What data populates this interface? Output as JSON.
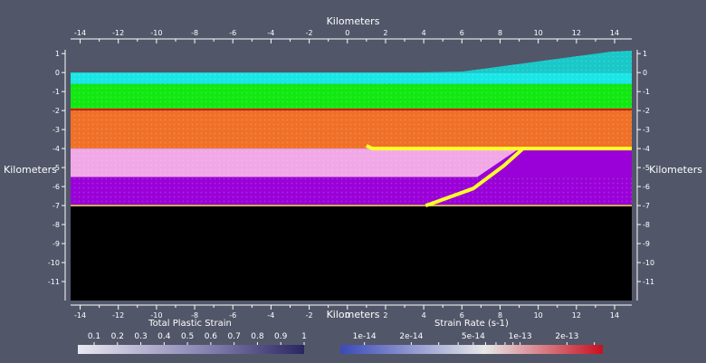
{
  "viewport": {
    "axis_title": "Kilometers",
    "x_range": [
      -14.5,
      14.9
    ],
    "y_range": [
      -12,
      1.2
    ],
    "x_ticks": [
      "-14",
      "-12",
      "-10",
      "-8",
      "-6",
      "-4",
      "-2",
      "0",
      "2",
      "4",
      "6",
      "8",
      "10",
      "12",
      "14"
    ],
    "y_ticks": [
      "1",
      "0",
      "-1",
      "-2",
      "-3",
      "-4",
      "-5",
      "-6",
      "-7",
      "-8",
      "-9",
      "-10",
      "-11"
    ]
  },
  "model": {
    "layers": [
      {
        "name": "upper-crust-cyan",
        "color": "#19e6e6",
        "top_km": 0,
        "bottom_km": -0.6
      },
      {
        "name": "green-layer",
        "color": "#11e811",
        "top_km": -0.6,
        "bottom_km": -1.9
      },
      {
        "name": "red-line",
        "color": "#e80000",
        "top_km": -1.9,
        "bottom_km": -2.0
      },
      {
        "name": "orange-layer",
        "color": "#f07028",
        "top_km": -2.0,
        "bottom_km": -4.0
      },
      {
        "name": "pink-layer",
        "color": "#f0a8e6",
        "top_km": -4.0,
        "bottom_km": -5.5
      },
      {
        "name": "purple-layer",
        "color": "#9a00d8",
        "top_km": -5.5,
        "bottom_km": -7.0
      },
      {
        "name": "black-basement",
        "color": "#000000",
        "top_km": -7.0,
        "bottom_km": -12
      }
    ],
    "ramp_color": "#19c8c8",
    "fault_color": "#ffff2a",
    "detachment_color": "#f0e040"
  },
  "legends": {
    "plastic_strain": {
      "title": "Total Plastic Strain",
      "labels": [
        "0.1",
        "0.2",
        "0.3",
        "0.4",
        "0.5",
        "0.6",
        "0.7",
        "0.8",
        "0.9",
        "1"
      ],
      "colors": [
        "#e8e8f0",
        "#8a86b4",
        "#2a2660"
      ]
    },
    "strain_rate": {
      "title": "Strain Rate (s-1)",
      "labels": [
        "1e-14",
        "2e-14",
        "5e-14",
        "1e-13",
        "2e-13"
      ],
      "colors": [
        "#3a4ab8",
        "#e8e8e8",
        "#c81020"
      ]
    }
  }
}
